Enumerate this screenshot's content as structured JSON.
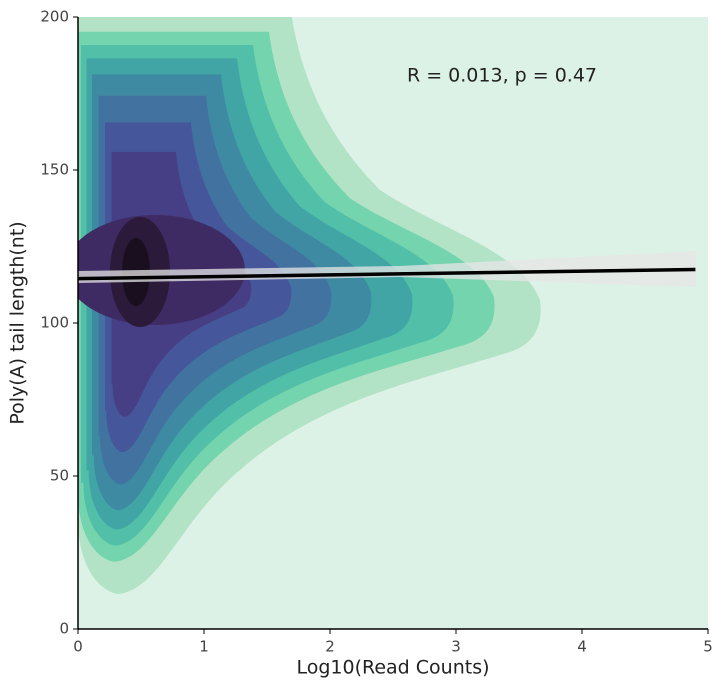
{
  "chart_data": {
    "type": "density",
    "x_label": "Log10(Read Counts)",
    "y_label": "Poly(A) tail length(nt)",
    "annotation": "R = 0.013, p = 0.47",
    "xlim": [
      0,
      5
    ],
    "ylim": [
      0,
      200
    ],
    "xticks": [
      0,
      1,
      2,
      3,
      4,
      5
    ],
    "yticks": [
      0,
      50,
      100,
      150,
      200
    ],
    "fit_line": {
      "x": [
        0,
        4.9
      ],
      "y": [
        114.5,
        117.5
      ],
      "color": "#000000"
    }
  }
}
